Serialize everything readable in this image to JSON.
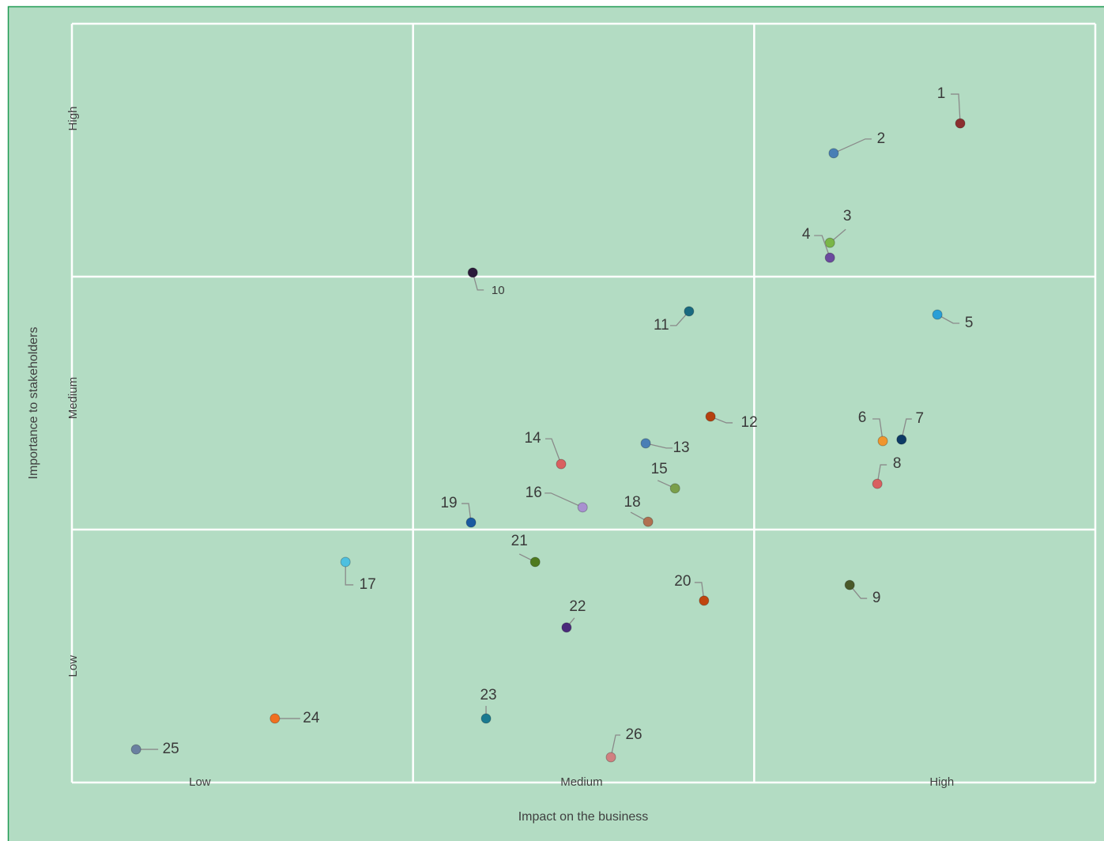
{
  "chart_data": {
    "type": "scatter",
    "xlabel": "Impact on the  business",
    "ylabel": "Importance to stakeholders",
    "xlim": [
      0,
      3
    ],
    "ylim": [
      0,
      3
    ],
    "grid": true,
    "xgrid": [
      0,
      1,
      2,
      3
    ],
    "ygrid": [
      0,
      1,
      2,
      3
    ],
    "xticks": [
      {
        "value": 0.375,
        "label": "Low"
      },
      {
        "value": 1.494,
        "label": "Medium"
      },
      {
        "value": 2.55,
        "label": "High"
      }
    ],
    "yticks": [
      {
        "value": 0.46,
        "label": "Low"
      },
      {
        "value": 1.52,
        "label": "Medium"
      },
      {
        "value": 2.625,
        "label": "High"
      }
    ],
    "labels": [
      "1",
      "2",
      "3",
      "4",
      "5",
      "6",
      "7",
      "8",
      "9",
      "10",
      "11",
      "12",
      "13",
      "14",
      "15",
      "16",
      "17",
      "18",
      "19",
      "20",
      "21",
      "22",
      "23",
      "24",
      "25",
      "26"
    ],
    "x": [
      2.604,
      2.233,
      2.222,
      2.222,
      2.537,
      2.377,
      2.432,
      2.361,
      2.28,
      1.175,
      1.809,
      1.872,
      1.682,
      1.434,
      1.768,
      1.497,
      0.802,
      1.689,
      1.17,
      1.853,
      1.358,
      1.45,
      1.214,
      0.595,
      0.188,
      1.58
    ],
    "values": [
      2.606,
      2.488,
      2.134,
      2.075,
      1.85,
      1.35,
      1.356,
      1.181,
      0.781,
      2.016,
      1.863,
      1.447,
      1.341,
      1.259,
      1.163,
      1.088,
      0.872,
      1.031,
      1.028,
      0.719,
      0.872,
      0.613,
      0.253,
      0.253,
      0.131,
      0.1
    ],
    "colors": [
      "#8b2f2f",
      "#4a7fb5",
      "#7ab648",
      "#6b4a9e",
      "#2a9fd6",
      "#f0962e",
      "#0d3b66",
      "#d96060",
      "#4a5a2a",
      "#2a1a3a",
      "#1a6a80",
      "#b5400f",
      "#4a7fb5",
      "#d96060",
      "#7a9f4a",
      "#a890d0",
      "#4ec0e0",
      "#b07050",
      "#1a5aa0",
      "#c0450f",
      "#4f7a1f",
      "#4a2a7a",
      "#1a7a90",
      "#f07020",
      "#6a80a0",
      "#d08080"
    ]
  }
}
